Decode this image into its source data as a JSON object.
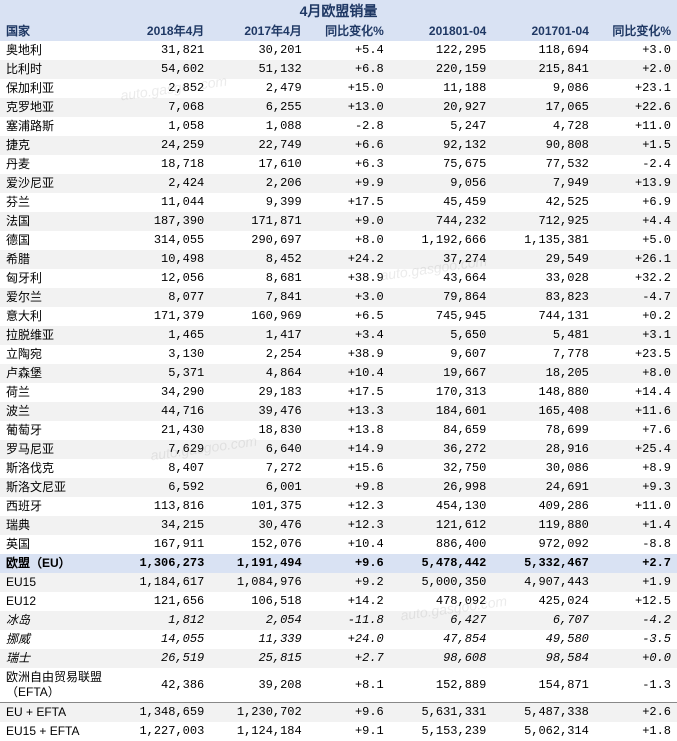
{
  "title": "4月欧盟销量",
  "columns": [
    "国家",
    "2018年4月",
    "2017年4月",
    "同比变化%",
    "201801-04",
    "201701-04",
    "同比变化%"
  ],
  "col_widths": [
    "110px",
    "95px",
    "95px",
    "80px",
    "100px",
    "100px",
    "80px"
  ],
  "stripe_colors": [
    "#ffffff",
    "#f2f2f2"
  ],
  "header_bg": "#d9e2f3",
  "header_fg": "#1f3864",
  "eu_row_bg": "#d9e2f3",
  "font_size_body": 12,
  "font_size_title": 14,
  "watermark_text": "auto.gasgoo.com",
  "rows": [
    {
      "c": "奥地利",
      "a": "31,821",
      "b": "30,201",
      "d": "+5.4",
      "e": "122,295",
      "f": "118,694",
      "g": "+3.0"
    },
    {
      "c": "比利时",
      "a": "54,602",
      "b": "51,132",
      "d": "+6.8",
      "e": "220,159",
      "f": "215,841",
      "g": "+2.0"
    },
    {
      "c": "保加利亚",
      "a": "2,852",
      "b": "2,479",
      "d": "+15.0",
      "e": "11,188",
      "f": "9,086",
      "g": "+23.1"
    },
    {
      "c": "克罗地亚",
      "a": "7,068",
      "b": "6,255",
      "d": "+13.0",
      "e": "20,927",
      "f": "17,065",
      "g": "+22.6"
    },
    {
      "c": "塞浦路斯",
      "a": "1,058",
      "b": "1,088",
      "d": "-2.8",
      "e": "5,247",
      "f": "4,728",
      "g": "+11.0"
    },
    {
      "c": "捷克",
      "a": "24,259",
      "b": "22,749",
      "d": "+6.6",
      "e": "92,132",
      "f": "90,808",
      "g": "+1.5"
    },
    {
      "c": "丹麦",
      "a": "18,718",
      "b": "17,610",
      "d": "+6.3",
      "e": "75,675",
      "f": "77,532",
      "g": "-2.4"
    },
    {
      "c": "爱沙尼亚",
      "a": "2,424",
      "b": "2,206",
      "d": "+9.9",
      "e": "9,056",
      "f": "7,949",
      "g": "+13.9"
    },
    {
      "c": "芬兰",
      "a": "11,044",
      "b": "9,399",
      "d": "+17.5",
      "e": "45,459",
      "f": "42,525",
      "g": "+6.9"
    },
    {
      "c": "法国",
      "a": "187,390",
      "b": "171,871",
      "d": "+9.0",
      "e": "744,232",
      "f": "712,925",
      "g": "+4.4"
    },
    {
      "c": "德国",
      "a": "314,055",
      "b": "290,697",
      "d": "+8.0",
      "e": "1,192,666",
      "f": "1,135,381",
      "g": "+5.0"
    },
    {
      "c": "希腊",
      "a": "10,498",
      "b": "8,452",
      "d": "+24.2",
      "e": "37,274",
      "f": "29,549",
      "g": "+26.1"
    },
    {
      "c": "匈牙利",
      "a": "12,056",
      "b": "8,681",
      "d": "+38.9",
      "e": "43,664",
      "f": "33,028",
      "g": "+32.2"
    },
    {
      "c": "爱尔兰",
      "a": "8,077",
      "b": "7,841",
      "d": "+3.0",
      "e": "79,864",
      "f": "83,823",
      "g": "-4.7"
    },
    {
      "c": "意大利",
      "a": "171,379",
      "b": "160,969",
      "d": "+6.5",
      "e": "745,945",
      "f": "744,131",
      "g": "+0.2"
    },
    {
      "c": "拉脱维亚",
      "a": "1,465",
      "b": "1,417",
      "d": "+3.4",
      "e": "5,650",
      "f": "5,481",
      "g": "+3.1"
    },
    {
      "c": "立陶宛",
      "a": "3,130",
      "b": "2,254",
      "d": "+38.9",
      "e": "9,607",
      "f": "7,778",
      "g": "+23.5"
    },
    {
      "c": "卢森堡",
      "a": "5,371",
      "b": "4,864",
      "d": "+10.4",
      "e": "19,667",
      "f": "18,205",
      "g": "+8.0"
    },
    {
      "c": "荷兰",
      "a": "34,290",
      "b": "29,183",
      "d": "+17.5",
      "e": "170,313",
      "f": "148,880",
      "g": "+14.4"
    },
    {
      "c": "波兰",
      "a": "44,716",
      "b": "39,476",
      "d": "+13.3",
      "e": "184,601",
      "f": "165,408",
      "g": "+11.6"
    },
    {
      "c": "葡萄牙",
      "a": "21,430",
      "b": "18,830",
      "d": "+13.8",
      "e": "84,659",
      "f": "78,699",
      "g": "+7.6"
    },
    {
      "c": "罗马尼亚",
      "a": "7,629",
      "b": "6,640",
      "d": "+14.9",
      "e": "36,272",
      "f": "28,916",
      "g": "+25.4"
    },
    {
      "c": "斯洛伐克",
      "a": "8,407",
      "b": "7,272",
      "d": "+15.6",
      "e": "32,750",
      "f": "30,086",
      "g": "+8.9"
    },
    {
      "c": "斯洛文尼亚",
      "a": "6,592",
      "b": "6,001",
      "d": "+9.8",
      "e": "26,998",
      "f": "24,691",
      "g": "+9.3"
    },
    {
      "c": "西班牙",
      "a": "113,816",
      "b": "101,375",
      "d": "+12.3",
      "e": "454,130",
      "f": "409,286",
      "g": "+11.0"
    },
    {
      "c": "瑞典",
      "a": "34,215",
      "b": "30,476",
      "d": "+12.3",
      "e": "121,612",
      "f": "119,880",
      "g": "+1.4"
    },
    {
      "c": "英国",
      "a": "167,911",
      "b": "152,076",
      "d": "+10.4",
      "e": "886,400",
      "f": "972,092",
      "g": "-8.8"
    }
  ],
  "summary": [
    {
      "c": "欧盟（EU）",
      "a": "1,306,273",
      "b": "1,191,494",
      "d": "+9.6",
      "e": "5,478,442",
      "f": "5,332,467",
      "g": "+2.7",
      "style": "eu"
    },
    {
      "c": "EU15",
      "a": "1,184,617",
      "b": "1,084,976",
      "d": "+9.2",
      "e": "5,000,350",
      "f": "4,907,443",
      "g": "+1.9"
    },
    {
      "c": "EU12",
      "a": "121,656",
      "b": "106,518",
      "d": "+14.2",
      "e": "478,092",
      "f": "425,024",
      "g": "+12.5"
    },
    {
      "c": "冰岛",
      "a": "1,812",
      "b": "2,054",
      "d": "-11.8",
      "e": "6,427",
      "f": "6,707",
      "g": "-4.2",
      "style": "italic"
    },
    {
      "c": "挪威",
      "a": "14,055",
      "b": "11,339",
      "d": "+24.0",
      "e": "47,854",
      "f": "49,580",
      "g": "-3.5",
      "style": "italic"
    },
    {
      "c": "瑞士",
      "a": "26,519",
      "b": "25,815",
      "d": "+2.7",
      "e": "98,608",
      "f": "98,584",
      "g": "+0.0",
      "style": "italic"
    },
    {
      "c": "欧洲自由贸易联盟（EFTA）",
      "a": "42,386",
      "b": "39,208",
      "d": "+8.1",
      "e": "152,889",
      "f": "154,871",
      "g": "-1.3",
      "style": "tall"
    },
    {
      "c": "EU + EFTA",
      "a": "1,348,659",
      "b": "1,230,702",
      "d": "+9.6",
      "e": "5,631,331",
      "f": "5,487,338",
      "g": "+2.6",
      "style": "topline"
    },
    {
      "c": "EU15 + EFTA",
      "a": "1,227,003",
      "b": "1,124,184",
      "d": "+9.1",
      "e": "5,153,239",
      "f": "5,062,314",
      "g": "+1.8"
    }
  ]
}
